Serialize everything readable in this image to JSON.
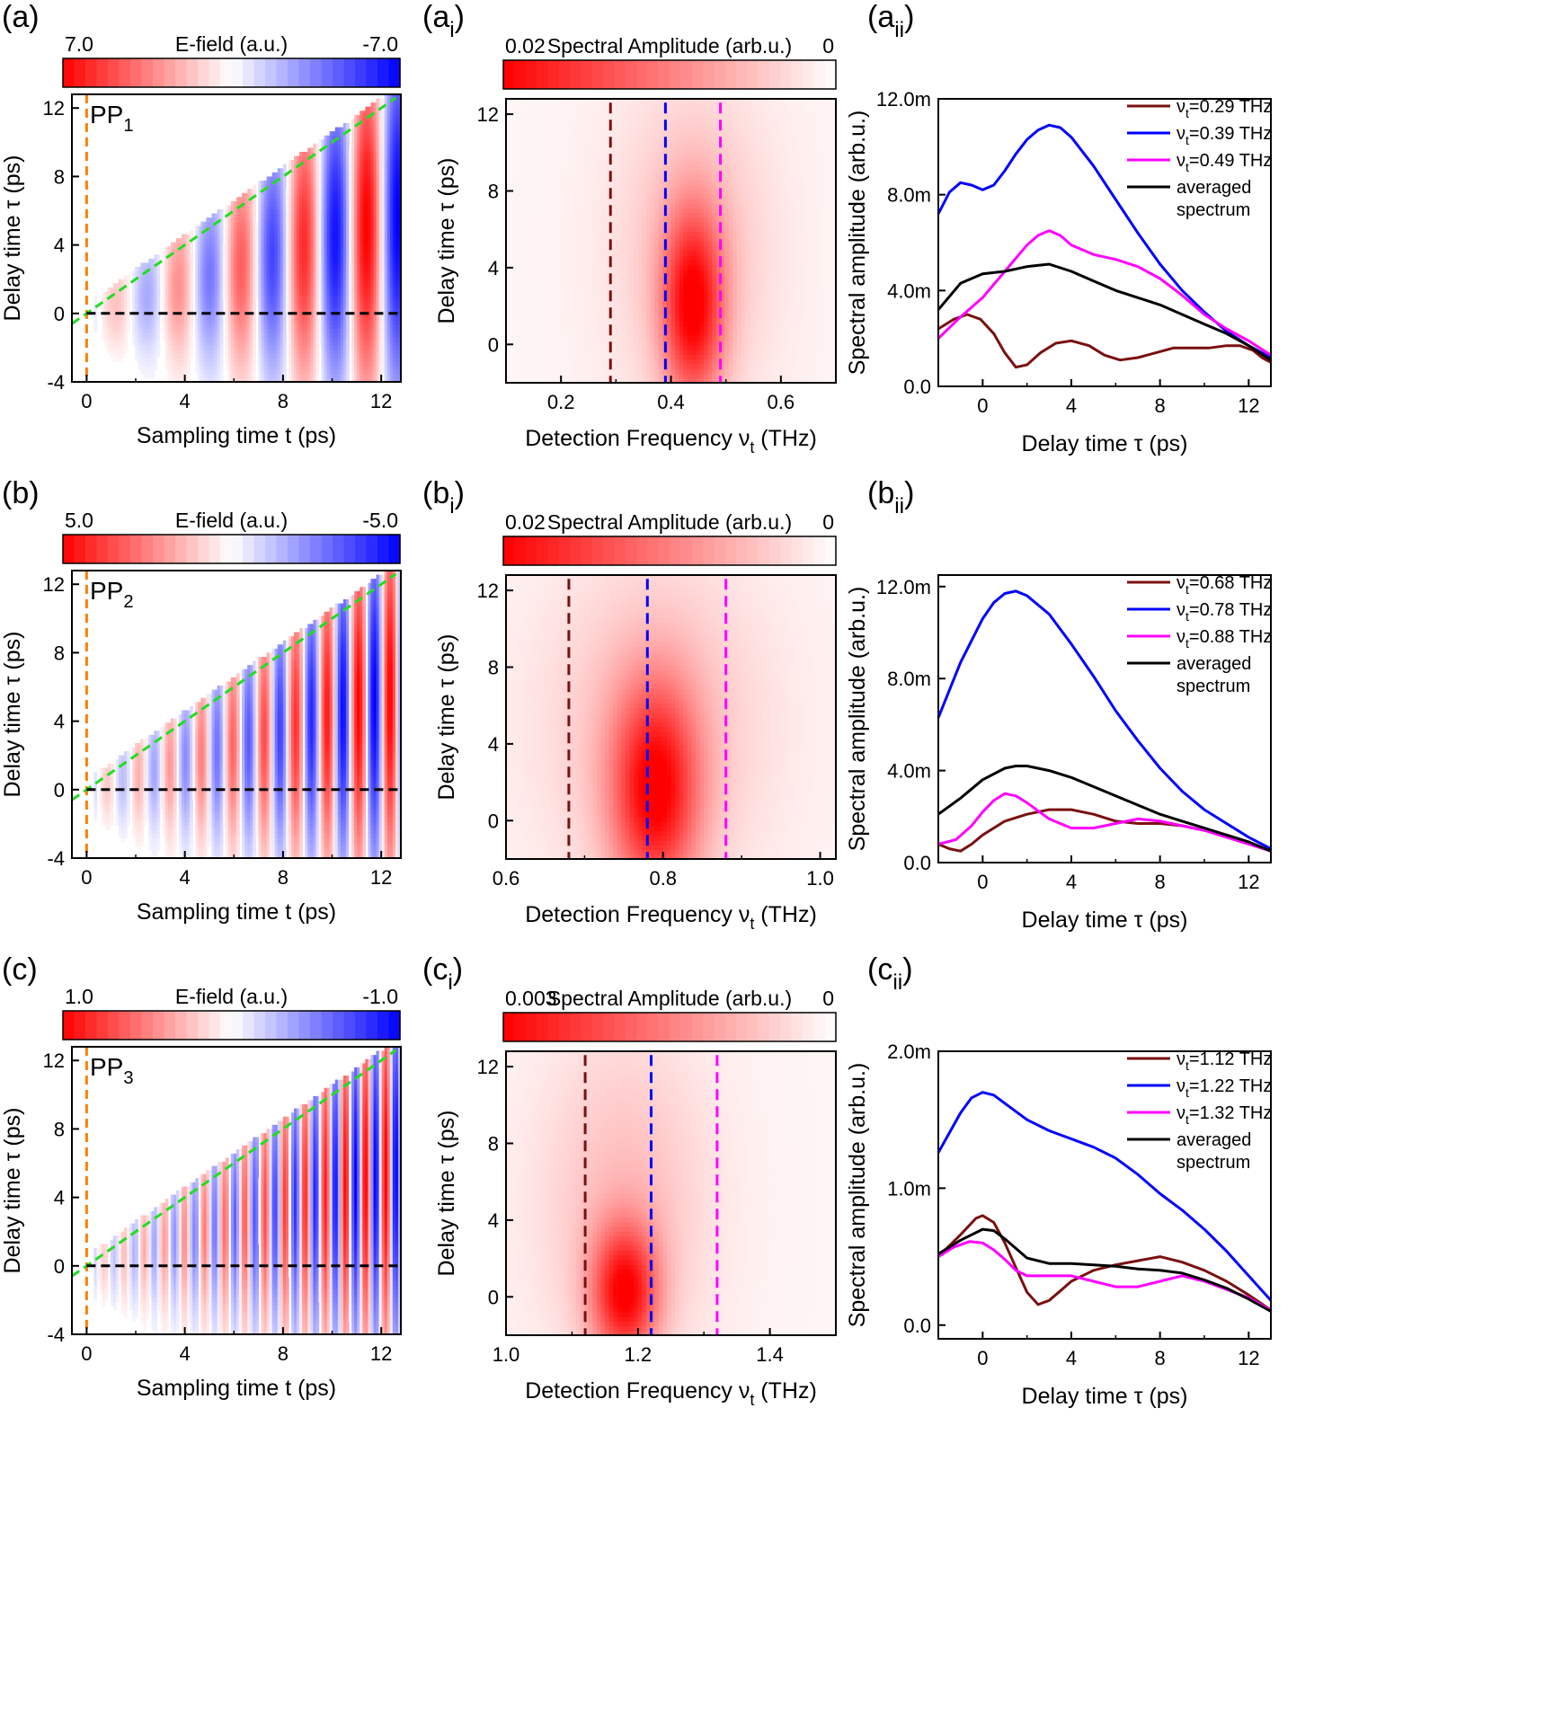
{
  "figure": {
    "colors": {
      "red": "#ff0000",
      "blue": "#0000ff",
      "white": "#ffffff",
      "dark_red": "#7a1010",
      "line_blue": "#0000ff",
      "magenta": "#ff00ff",
      "black": "#000000",
      "orange": "#ff7f00",
      "green": "#22dd22",
      "navy": "#0000ff"
    }
  },
  "chart_data": [
    {
      "id": "a",
      "type": "heatmap",
      "panel_label": "(a)",
      "title": "E-field (a.u.)",
      "colorbar_min": "7.0",
      "colorbar_max": "-7.0",
      "pp_label": "PP",
      "pp_sub": "1",
      "xlabel": "Sampling time t (ps)",
      "ylabel": "Delay time τ (ps)",
      "xlim": [
        -0.6,
        12.8
      ],
      "ylim": [
        -4,
        12.8
      ],
      "xticks": [
        0,
        4,
        8,
        12
      ],
      "yticks": [
        -4,
        0,
        4,
        8,
        12
      ],
      "xtick_labels": [
        "0",
        "4",
        "8",
        "12"
      ],
      "ytick_labels": [
        "-4",
        "0",
        "4",
        "8",
        "12"
      ],
      "field": {
        "freq_thz": 0.39,
        "amp": 7.0,
        "row": 4
      },
      "cutoff_line": "t = τ",
      "orange_line_x": 0,
      "black_line_y": 0
    },
    {
      "id": "ai",
      "type": "heatmap",
      "panel_label": "(a",
      "panel_sub": "i",
      "panel_close": ")",
      "title": "Spectral Amplitude (arb.u.)",
      "colorbar_min": "0.02",
      "colorbar_max": "0",
      "xlabel": "Detection Frequency ν",
      "xlabel_sub": "t",
      "xlabel_unit": " (THz)",
      "ylabel": "Delay time τ (ps)",
      "xlim": [
        0.1,
        0.7
      ],
      "ylim": [
        -2,
        12.8
      ],
      "xticks": [
        0.2,
        0.4,
        0.6
      ],
      "yticks": [
        0,
        4,
        8,
        12
      ],
      "xtick_labels": [
        "0.2",
        "0.4",
        "0.6"
      ],
      "ytick_labels": [
        "0",
        "4",
        "8",
        "12"
      ],
      "spectrum": {
        "center": 0.44,
        "width": 0.055,
        "peak_tau": 2,
        "tau_width": 5,
        "row": 4
      },
      "vlines": [
        0.29,
        0.39,
        0.49
      ]
    },
    {
      "id": "aii",
      "type": "line",
      "panel_label": "(a",
      "panel_sub": "ii",
      "panel_close": ")",
      "xlabel": "Delay time τ (ps)",
      "ylabel": "Spectral amplitude (arb.u.)",
      "xlim": [
        -2,
        13
      ],
      "ylim": [
        0,
        12
      ],
      "xticks": [
        0,
        4,
        8,
        12
      ],
      "yticks": [
        0,
        4,
        8,
        12
      ],
      "xtick_labels": [
        "0",
        "4",
        "8",
        "12"
      ],
      "ytick_labels": [
        "0.0",
        "4.0m",
        "8.0m",
        "12.0m"
      ],
      "legend": [
        "ν",
        "ν",
        "ν",
        "averaged",
        "spectrum"
      ],
      "legend_vals": [
        "=0.29 THz",
        "=0.39 THz",
        "=0.49 THz"
      ],
      "series": [
        {
          "name": "νt=0.29 THz",
          "color": "dark_red",
          "x": [
            -2,
            -1.3,
            -0.7,
            -0.1,
            0.5,
            1,
            1.5,
            2,
            2.6,
            3.3,
            4,
            4.8,
            5.5,
            6.2,
            7,
            7.8,
            8.6,
            9.4,
            10.2,
            11,
            11.6,
            12.2,
            12.6,
            13
          ],
          "y": [
            2.4,
            2.8,
            3.0,
            2.8,
            2.2,
            1.4,
            0.8,
            0.9,
            1.4,
            1.8,
            1.9,
            1.7,
            1.3,
            1.1,
            1.2,
            1.4,
            1.6,
            1.6,
            1.6,
            1.7,
            1.7,
            1.5,
            1.2,
            1.0
          ]
        },
        {
          "name": "νt=0.39 THz",
          "color": "line_blue",
          "x": [
            -2,
            -1.5,
            -1,
            -0.5,
            0,
            0.5,
            1,
            1.5,
            2,
            2.5,
            3,
            3.5,
            4,
            5,
            6,
            7,
            8,
            9,
            10,
            11,
            12,
            13
          ],
          "y": [
            7.2,
            8.1,
            8.5,
            8.4,
            8.2,
            8.4,
            9.0,
            9.7,
            10.3,
            10.7,
            10.9,
            10.8,
            10.4,
            9.2,
            7.8,
            6.4,
            5.1,
            4.0,
            3.1,
            2.3,
            1.7,
            1.2
          ]
        },
        {
          "name": "νt=0.49 THz",
          "color": "magenta",
          "x": [
            -2,
            -1,
            0,
            1,
            2,
            2.5,
            3,
            3.5,
            4,
            5,
            6,
            7,
            8,
            9,
            10,
            11,
            12,
            13
          ],
          "y": [
            2.0,
            2.9,
            3.7,
            4.8,
            5.9,
            6.3,
            6.5,
            6.3,
            5.9,
            5.5,
            5.3,
            5.0,
            4.5,
            3.8,
            3.0,
            2.4,
            1.9,
            1.3
          ]
        },
        {
          "name": "averaged spectrum",
          "color": "black",
          "x": [
            -2,
            -1,
            0,
            1,
            2,
            3,
            4,
            5,
            6,
            7,
            8,
            9,
            10,
            11,
            12,
            13
          ],
          "y": [
            3.2,
            4.3,
            4.7,
            4.8,
            5.0,
            5.1,
            4.8,
            4.4,
            4.0,
            3.7,
            3.4,
            3.0,
            2.6,
            2.2,
            1.7,
            1.1
          ]
        }
      ]
    },
    {
      "id": "b",
      "type": "heatmap",
      "panel_label": "(b)",
      "title": "E-field (a.u.)",
      "colorbar_min": "5.0",
      "colorbar_max": "-5.0",
      "pp_label": "PP",
      "pp_sub": "2",
      "xlabel": "Sampling time t (ps)",
      "ylabel": "Delay time τ (ps)",
      "xlim": [
        -0.6,
        12.8
      ],
      "ylim": [
        -4,
        12.8
      ],
      "xticks": [
        0,
        4,
        8,
        12
      ],
      "yticks": [
        -4,
        0,
        4,
        8,
        12
      ],
      "xtick_labels": [
        "0",
        "4",
        "8",
        "12"
      ],
      "ytick_labels": [
        "-4",
        "0",
        "4",
        "8",
        "12"
      ],
      "field": {
        "freq_thz": 0.78,
        "amp": 5.0,
        "row": 4
      },
      "cutoff_line": "t = τ",
      "orange_line_x": 0,
      "black_line_y": 0
    },
    {
      "id": "bi",
      "type": "heatmap",
      "panel_label": "(b",
      "panel_sub": "i",
      "panel_close": ")",
      "title": "Spectral Amplitude (arb.u.)",
      "colorbar_min": "0.02",
      "colorbar_max": "0",
      "xlabel": "Detection Frequency ν",
      "xlabel_sub": "t",
      "xlabel_unit": " (THz)",
      "ylabel": "Delay time τ (ps)",
      "xlim": [
        0.6,
        1.02
      ],
      "ylim": [
        -2,
        12.8
      ],
      "xticks": [
        0.6,
        0.8,
        1.0
      ],
      "yticks": [
        0,
        4,
        8,
        12
      ],
      "xtick_labels": [
        "0.6",
        "0.8",
        "1.0"
      ],
      "ytick_labels": [
        "0",
        "4",
        "8",
        "12"
      ],
      "spectrum": {
        "center": 0.79,
        "width": 0.055,
        "peak_tau": 1.5,
        "tau_width": 5.5,
        "row": 4
      },
      "vlines": [
        0.68,
        0.78,
        0.88
      ]
    },
    {
      "id": "bii",
      "type": "line",
      "panel_label": "(b",
      "panel_sub": "ii",
      "panel_close": ")",
      "xlabel": "Delay time τ (ps)",
      "ylabel": "Spectral amplitude (arb.u.)",
      "xlim": [
        -2,
        13
      ],
      "ylim": [
        0,
        12.5
      ],
      "xticks": [
        0,
        4,
        8,
        12
      ],
      "yticks": [
        0,
        4,
        8,
        12
      ],
      "xtick_labels": [
        "0",
        "4",
        "8",
        "12"
      ],
      "ytick_labels": [
        "0.0",
        "4.0m",
        "8.0m",
        "12.0m"
      ],
      "legend": [
        "ν",
        "ν",
        "ν",
        "averaged",
        "spectrum"
      ],
      "legend_vals": [
        "=0.68 THz",
        "=0.78 THz",
        "=0.88 THz"
      ],
      "series": [
        {
          "name": "νt=0.68 THz",
          "color": "dark_red",
          "x": [
            -2,
            -1.5,
            -1,
            -0.5,
            0,
            1,
            2,
            3,
            4,
            5,
            6,
            7,
            8,
            9,
            10,
            11,
            12,
            13
          ],
          "y": [
            0.8,
            0.6,
            0.5,
            0.8,
            1.2,
            1.8,
            2.1,
            2.3,
            2.3,
            2.1,
            1.8,
            1.7,
            1.7,
            1.6,
            1.4,
            1.2,
            0.9,
            0.5
          ]
        },
        {
          "name": "νt=0.78 THz",
          "color": "line_blue",
          "x": [
            -2,
            -1,
            0,
            0.5,
            1,
            1.5,
            2,
            3,
            4,
            5,
            6,
            7,
            8,
            9,
            10,
            11,
            12,
            13
          ],
          "y": [
            6.3,
            8.7,
            10.6,
            11.3,
            11.7,
            11.8,
            11.6,
            10.8,
            9.5,
            8.1,
            6.6,
            5.3,
            4.1,
            3.1,
            2.3,
            1.7,
            1.1,
            0.6
          ]
        },
        {
          "name": "νt=0.88 THz",
          "color": "magenta",
          "x": [
            -2,
            -1.2,
            -0.5,
            0,
            0.5,
            1,
            1.5,
            2,
            3,
            4,
            5,
            6,
            7,
            8,
            9,
            10,
            11,
            12,
            13
          ],
          "y": [
            0.8,
            1.0,
            1.6,
            2.2,
            2.7,
            3.0,
            2.9,
            2.6,
            1.9,
            1.5,
            1.5,
            1.7,
            1.9,
            1.8,
            1.6,
            1.4,
            1.1,
            0.8,
            0.5
          ]
        },
        {
          "name": "averaged spectrum",
          "color": "black",
          "x": [
            -2,
            -1,
            0,
            1,
            1.5,
            2,
            3,
            4,
            5,
            6,
            7,
            8,
            9,
            10,
            11,
            12,
            13
          ],
          "y": [
            2.1,
            2.8,
            3.6,
            4.1,
            4.2,
            4.2,
            4.0,
            3.7,
            3.3,
            2.9,
            2.5,
            2.1,
            1.8,
            1.5,
            1.2,
            0.9,
            0.5
          ]
        }
      ]
    },
    {
      "id": "c",
      "type": "heatmap",
      "panel_label": "(c)",
      "title": "E-field (a.u.)",
      "colorbar_min": "1.0",
      "colorbar_max": "-1.0",
      "pp_label": "PP",
      "pp_sub": "3",
      "xlabel": "Sampling time t (ps)",
      "ylabel": "Delay time τ (ps)",
      "xlim": [
        -0.6,
        12.8
      ],
      "ylim": [
        -4,
        12.8
      ],
      "xticks": [
        0,
        4,
        8,
        12
      ],
      "yticks": [
        -4,
        0,
        4,
        8,
        12
      ],
      "xtick_labels": [
        "0",
        "4",
        "8",
        "12"
      ],
      "ytick_labels": [
        "-4",
        "0",
        "4",
        "8",
        "12"
      ],
      "field": {
        "freq_thz": 1.22,
        "amp": 1.0,
        "row": 4
      },
      "cutoff_line": "t = τ",
      "orange_line_x": 0,
      "black_line_y": 0
    },
    {
      "id": "ci",
      "type": "heatmap",
      "panel_label": "(c",
      "panel_sub": "i",
      "panel_close": ")",
      "title": "Spectral Amplitude (arb.u.)",
      "colorbar_min": "0.003",
      "colorbar_max": "0",
      "xlabel": "Detection Frequency ν",
      "xlabel_sub": "t",
      "xlabel_unit": " (THz)",
      "ylabel": "Delay time τ (ps)",
      "xlim": [
        1.0,
        1.5
      ],
      "ylim": [
        -2,
        12.8
      ],
      "xticks": [
        1.0,
        1.2,
        1.4
      ],
      "yticks": [
        0,
        4,
        8,
        12
      ],
      "xtick_labels": [
        "1.0",
        "1.2",
        "1.4"
      ],
      "ytick_labels": [
        "0",
        "4",
        "8",
        "12"
      ],
      "spectrum": {
        "center": 1.18,
        "width": 0.05,
        "peak_tau": 0.2,
        "tau_width": 3.5,
        "row": 4
      },
      "vlines": [
        1.12,
        1.22,
        1.32
      ]
    },
    {
      "id": "cii",
      "type": "line",
      "panel_label": "(c",
      "panel_sub": "ii",
      "panel_close": ")",
      "xlabel": "Delay time τ (ps)",
      "ylabel": "Spectral amplitude (arb.u.)",
      "xlim": [
        -2,
        13
      ],
      "ylim": [
        -0.1,
        2
      ],
      "xticks": [
        0,
        4,
        8,
        12
      ],
      "yticks": [
        0,
        1,
        2
      ],
      "xtick_labels": [
        "0",
        "4",
        "8",
        "12"
      ],
      "ytick_labels": [
        "0.0",
        "1.0m",
        "2.0m"
      ],
      "legend": [
        "ν",
        "ν",
        "ν",
        "averaged",
        "spectrum"
      ],
      "legend_vals": [
        "=1.12 THz",
        "=1.22 THz",
        "=1.32 THz"
      ],
      "series": [
        {
          "name": "νt=1.12 THz",
          "color": "dark_red",
          "x": [
            -2,
            -1,
            -0.3,
            0,
            0.5,
            1,
            1.5,
            2,
            2.5,
            3,
            3.5,
            4,
            5,
            6,
            7,
            8,
            9,
            10,
            11,
            12,
            13
          ],
          "y": [
            0.5,
            0.66,
            0.78,
            0.8,
            0.75,
            0.6,
            0.42,
            0.24,
            0.15,
            0.18,
            0.25,
            0.32,
            0.4,
            0.44,
            0.47,
            0.5,
            0.46,
            0.4,
            0.32,
            0.22,
            0.11
          ]
        },
        {
          "name": "νt=1.22 THz",
          "color": "line_blue",
          "x": [
            -2,
            -1,
            -0.5,
            0,
            0.5,
            1,
            2,
            3,
            4,
            5,
            6,
            7,
            8,
            9,
            10,
            11,
            12,
            13
          ],
          "y": [
            1.26,
            1.55,
            1.66,
            1.7,
            1.68,
            1.62,
            1.5,
            1.42,
            1.36,
            1.3,
            1.22,
            1.1,
            0.96,
            0.84,
            0.7,
            0.54,
            0.36,
            0.18
          ]
        },
        {
          "name": "νt=1.32 THz",
          "color": "magenta",
          "x": [
            -2,
            -1.3,
            -0.6,
            0,
            0.5,
            1,
            1.5,
            2,
            3,
            4,
            5,
            6,
            7,
            8,
            9,
            10,
            11,
            12,
            13
          ],
          "y": [
            0.5,
            0.57,
            0.61,
            0.6,
            0.55,
            0.48,
            0.4,
            0.36,
            0.36,
            0.36,
            0.32,
            0.28,
            0.28,
            0.32,
            0.36,
            0.32,
            0.26,
            0.2,
            0.11
          ]
        },
        {
          "name": "averaged spectrum",
          "color": "black",
          "x": [
            -2,
            -1,
            0,
            0.5,
            1,
            2,
            3,
            4,
            5,
            6,
            7,
            8,
            9,
            10,
            11,
            12,
            13
          ],
          "y": [
            0.52,
            0.62,
            0.7,
            0.69,
            0.63,
            0.49,
            0.45,
            0.45,
            0.44,
            0.43,
            0.41,
            0.4,
            0.38,
            0.33,
            0.27,
            0.19,
            0.1
          ]
        }
      ]
    }
  ]
}
